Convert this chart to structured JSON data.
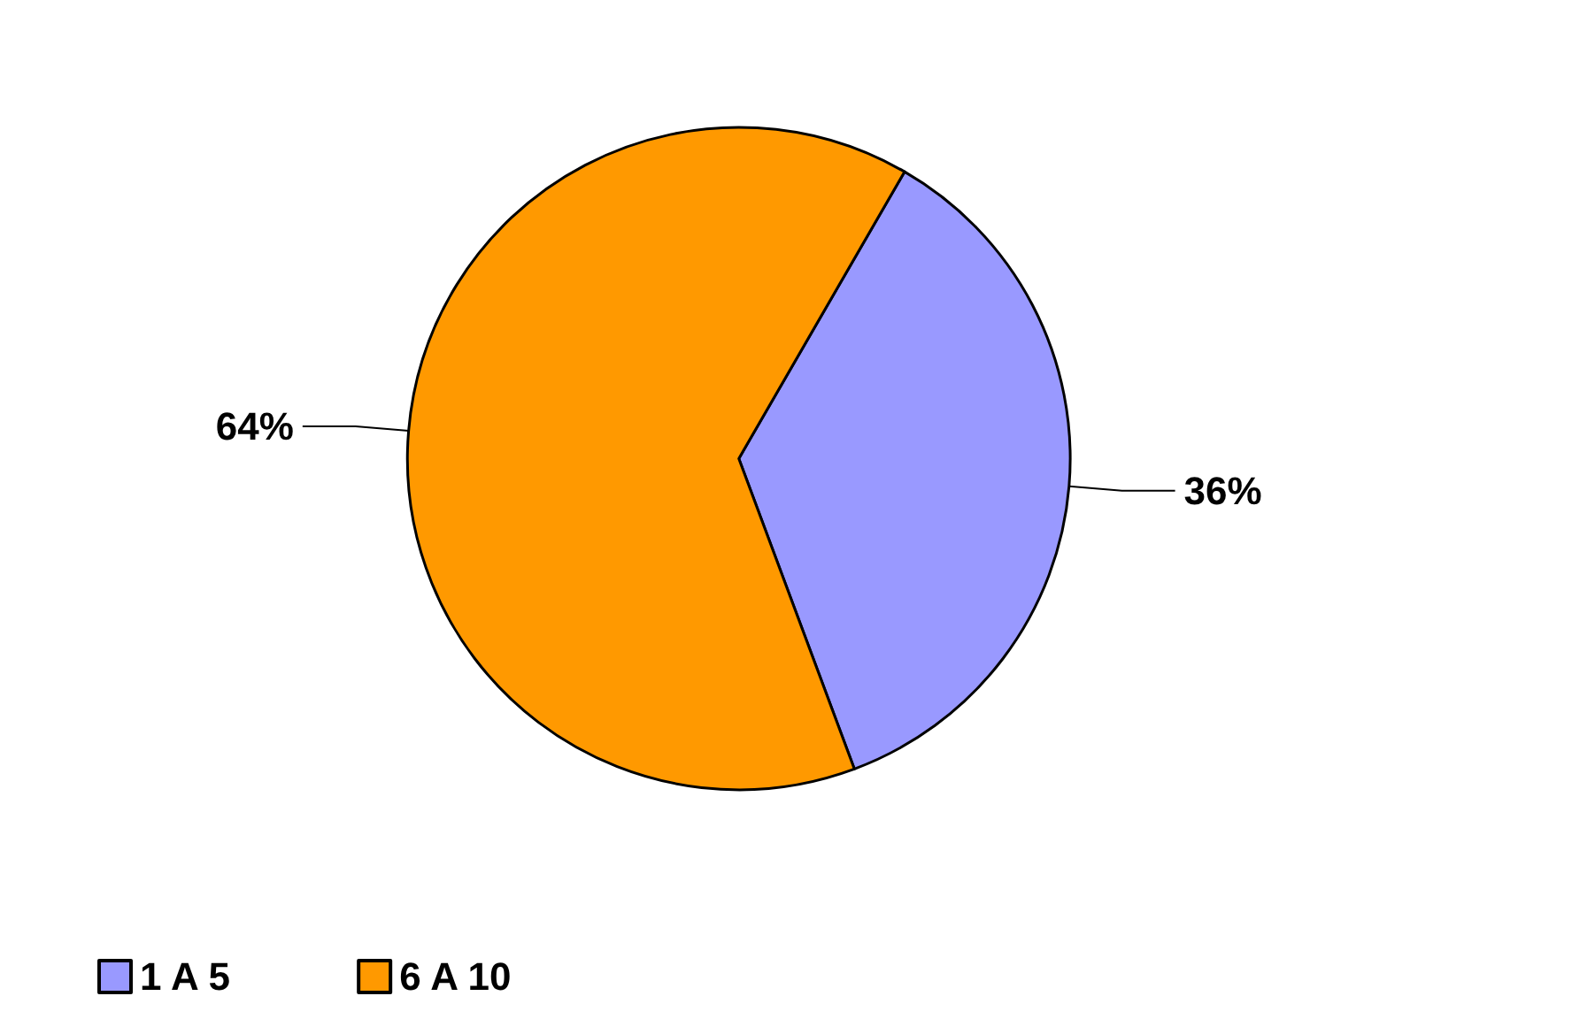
{
  "chart_data": {
    "type": "pie",
    "categories": [
      "1 A 5",
      "6 A 10"
    ],
    "values": [
      36,
      64
    ],
    "colors": [
      "#9999ff",
      "#ff9900"
    ],
    "value_labels": [
      "36%",
      "64%"
    ],
    "legend": "bottom left"
  }
}
